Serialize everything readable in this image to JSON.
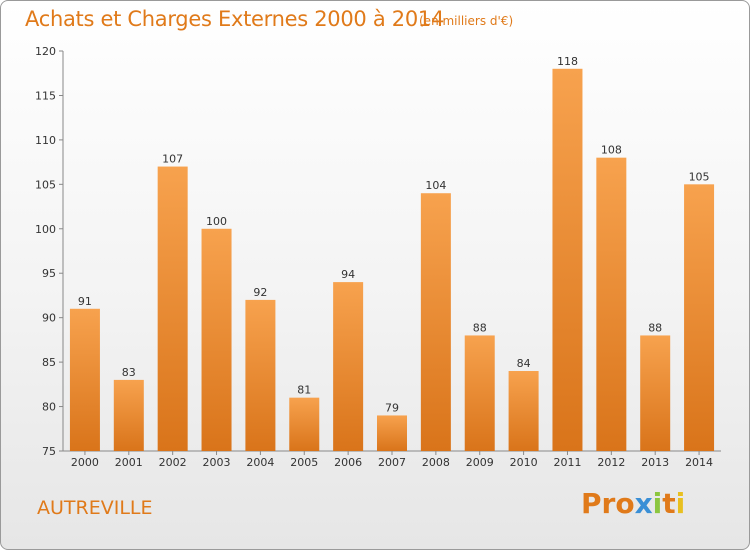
{
  "chart_data": {
    "type": "bar",
    "title": "Achats et Charges Externes 2000 à 2014",
    "subtitle": "(en milliers d'€)",
    "xlabel": "",
    "ylabel": "",
    "categories": [
      "2000",
      "2001",
      "2002",
      "2003",
      "2004",
      "2005",
      "2006",
      "2007",
      "2008",
      "2009",
      "2010",
      "2011",
      "2012",
      "2013",
      "2014"
    ],
    "values": [
      91,
      83,
      107,
      100,
      92,
      81,
      94,
      79,
      104,
      88,
      84,
      118,
      108,
      88,
      105
    ],
    "ylim": [
      75,
      120
    ],
    "yticks": [
      75,
      80,
      85,
      90,
      95,
      100,
      105,
      110,
      115,
      120
    ],
    "grid": false,
    "bar_color_top": "#f7a24e",
    "bar_color_bottom": "#d9741a"
  },
  "footer": {
    "town": "AUTREVILLE",
    "logo_letters": [
      "P",
      "r",
      "o",
      "x",
      "i",
      "t",
      "i"
    ],
    "logo_colors": [
      "#e07a1a",
      "#e07a1a",
      "#e07a1a",
      "#3a8fd6",
      "#8cc63f",
      "#e07a1a",
      "#e8c020"
    ]
  }
}
